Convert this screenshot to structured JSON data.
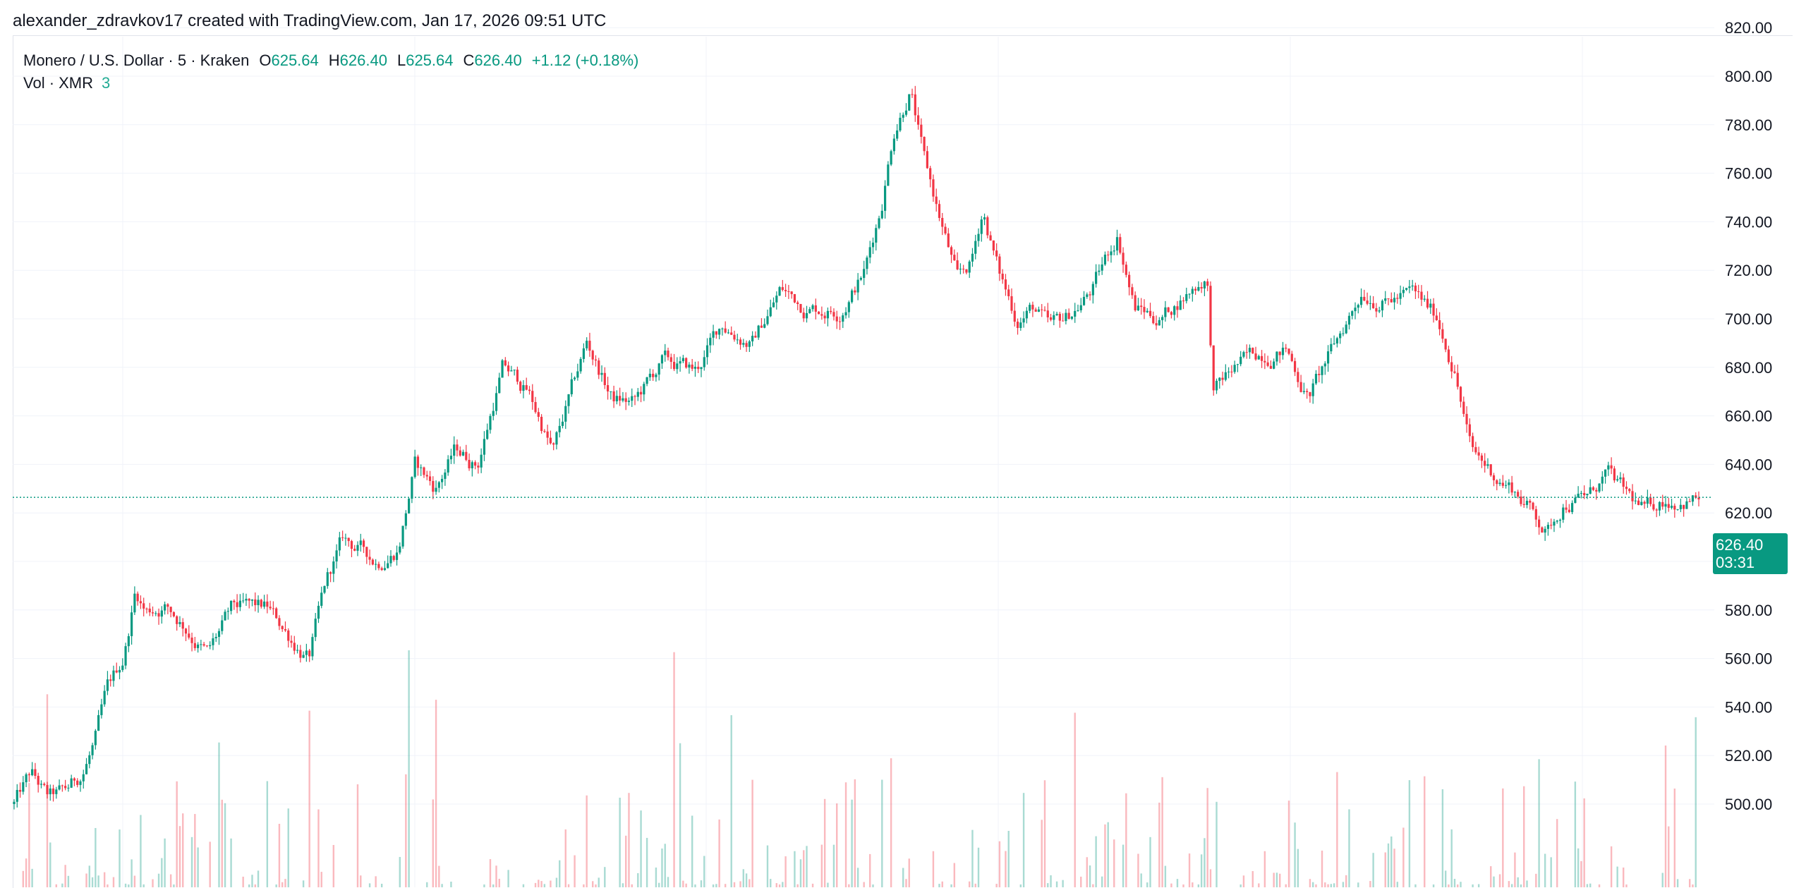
{
  "header": {
    "attribution": "alexander_zdravkov17 created with TradingView.com, Jan 17, 2026 09:51 UTC"
  },
  "legend": {
    "symbol": "Monero / U.S. Dollar · 5 · Kraken",
    "open_label": "O",
    "open": "625.64",
    "high_label": "H",
    "high": "626.40",
    "low_label": "L",
    "low": "625.64",
    "close_label": "C",
    "close": "626.40",
    "change": "+1.12 (+0.18%)",
    "volume_label": "Vol · XMR",
    "volume": "3"
  },
  "price_tag": {
    "price": "626.40",
    "countdown": "03:31"
  },
  "colors": {
    "up": "#089981",
    "down": "#f23645",
    "grid": "#f0f3fa",
    "axis_text": "#131722",
    "last_price_line": "#089981"
  },
  "chart_data": {
    "type": "candlestick",
    "series": [
      {
        "name": "XMR/USD",
        "unit": "USD"
      }
    ],
    "y_axis": {
      "ticks": [
        "820.00",
        "800.00",
        "780.00",
        "760.00",
        "740.00",
        "720.00",
        "700.00",
        "680.00",
        "660.00",
        "640.00",
        "620.00",
        "600.00",
        "580.00",
        "560.00",
        "540.00",
        "520.00",
        "500.00"
      ],
      "ylim": [
        493,
        828
      ]
    },
    "last_price": 626.4,
    "price_path": [
      [
        0,
        500
      ],
      [
        0.01,
        512
      ],
      [
        0.02,
        502
      ],
      [
        0.03,
        504
      ],
      [
        0.04,
        512
      ],
      [
        0.048,
        526
      ],
      [
        0.055,
        545
      ],
      [
        0.065,
        560
      ],
      [
        0.072,
        588
      ],
      [
        0.078,
        580
      ],
      [
        0.09,
        582
      ],
      [
        0.1,
        575
      ],
      [
        0.115,
        562
      ],
      [
        0.13,
        580
      ],
      [
        0.15,
        580
      ],
      [
        0.165,
        568
      ],
      [
        0.175,
        560
      ],
      [
        0.185,
        590
      ],
      [
        0.195,
        608
      ],
      [
        0.205,
        605
      ],
      [
        0.215,
        600
      ],
      [
        0.228,
        606
      ],
      [
        0.238,
        640
      ],
      [
        0.25,
        630
      ],
      [
        0.262,
        646
      ],
      [
        0.275,
        640
      ],
      [
        0.29,
        680
      ],
      [
        0.305,
        670
      ],
      [
        0.32,
        645
      ],
      [
        0.34,
        690
      ],
      [
        0.355,
        667
      ],
      [
        0.368,
        665
      ],
      [
        0.385,
        682
      ],
      [
        0.405,
        678
      ],
      [
        0.42,
        698
      ],
      [
        0.438,
        690
      ],
      [
        0.455,
        712
      ],
      [
        0.47,
        705
      ],
      [
        0.49,
        704
      ],
      [
        0.505,
        720
      ],
      [
        0.515,
        748
      ],
      [
        0.522,
        778
      ],
      [
        0.532,
        796
      ],
      [
        0.54,
        765
      ],
      [
        0.55,
        740
      ],
      [
        0.56,
        715
      ],
      [
        0.568,
        722
      ],
      [
        0.575,
        745
      ],
      [
        0.585,
        718
      ],
      [
        0.595,
        700
      ],
      [
        0.605,
        705
      ],
      [
        0.615,
        695
      ],
      [
        0.625,
        700
      ],
      [
        0.64,
        712
      ],
      [
        0.655,
        735
      ],
      [
        0.665,
        705
      ],
      [
        0.68,
        700
      ],
      [
        0.695,
        710
      ],
      [
        0.708,
        718
      ],
      [
        0.712,
        670
      ],
      [
        0.725,
        680
      ],
      [
        0.74,
        686
      ],
      [
        0.755,
        688
      ],
      [
        0.768,
        668
      ],
      [
        0.785,
        690
      ],
      [
        0.8,
        712
      ],
      [
        0.815,
        708
      ],
      [
        0.83,
        710
      ],
      [
        0.845,
        700
      ],
      [
        0.855,
        680
      ],
      [
        0.865,
        645
      ],
      [
        0.88,
        635
      ],
      [
        0.89,
        630
      ],
      [
        0.9,
        622
      ],
      [
        0.91,
        612
      ],
      [
        0.92,
        625
      ],
      [
        0.935,
        627
      ],
      [
        0.945,
        636
      ],
      [
        0.955,
        628
      ],
      [
        0.968,
        620
      ],
      [
        0.98,
        626
      ]
    ]
  }
}
